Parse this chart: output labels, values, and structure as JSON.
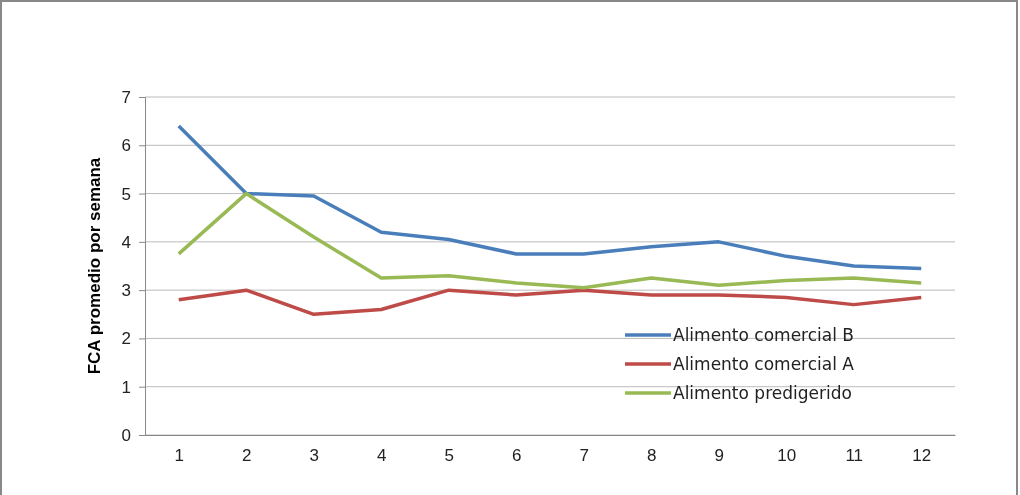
{
  "chart_data": {
    "type": "line",
    "ylabel": "FCA promedio por semana",
    "categories": [
      "1",
      "2",
      "3",
      "4",
      "5",
      "6",
      "7",
      "8",
      "9",
      "10",
      "11",
      "12"
    ],
    "ylim": [
      0,
      7
    ],
    "yticks": [
      0,
      1,
      2,
      3,
      4,
      5,
      6,
      7
    ],
    "grid": "y",
    "legend": "bottom right",
    "marker": "none",
    "line_style": "solid",
    "series": [
      {
        "name": "Alimento comercial B",
        "color": "#4a7ebb",
        "values": [
          6.4,
          5.0,
          4.95,
          4.2,
          4.05,
          3.75,
          3.75,
          3.9,
          4.0,
          3.7,
          3.5,
          3.45
        ]
      },
      {
        "name": "Alimento comercial A",
        "color": "#be4b48",
        "values": [
          2.8,
          3.0,
          2.5,
          2.6,
          3.0,
          2.9,
          3.0,
          2.9,
          2.9,
          2.85,
          2.7,
          2.85
        ]
      },
      {
        "name": "Alimento predigerido",
        "color": "#98b954",
        "values": [
          3.75,
          5.0,
          4.1,
          3.25,
          3.3,
          3.15,
          3.05,
          3.25,
          3.1,
          3.2,
          3.25,
          3.15
        ]
      }
    ]
  }
}
